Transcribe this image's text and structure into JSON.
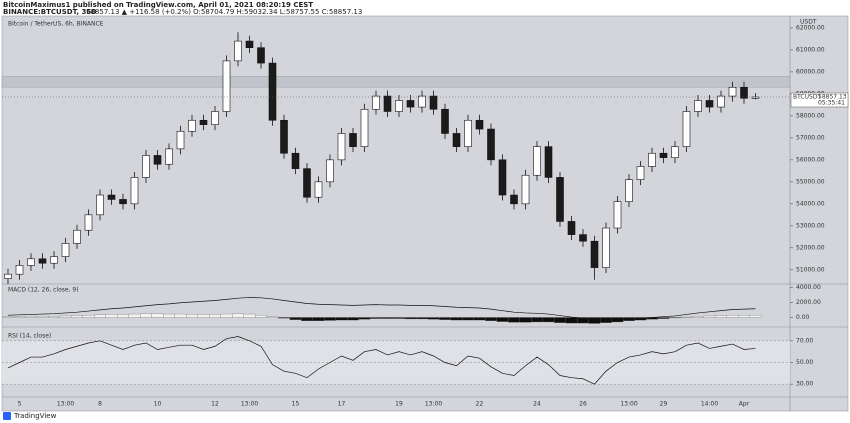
{
  "header": {
    "publisher": "BitcoinMaximus1 published on TradingView.com, April 01, 2021 08:20:19 CEST",
    "symbol": "BINANCE:BTCUSDT, 360",
    "quote": "58857.13 ▲ +116.58 (+0.2%) O:58704.79 H:59032.34 L:58757.55 C:58857.13"
  },
  "footer": {
    "brand": "TradingView"
  },
  "chart_data": [
    {
      "type": "candlestick",
      "title": "Bitcoin / TetherUS, 6h, BINANCE",
      "currency": "USDT",
      "categories": [
        null,
        "5",
        null,
        null,
        null,
        "13:00",
        null,
        null,
        "8",
        null,
        null,
        null,
        null,
        "10",
        null,
        null,
        null,
        null,
        "12",
        null,
        null,
        "13:00",
        null,
        null,
        null,
        "15",
        null,
        null,
        null,
        "17",
        null,
        null,
        null,
        null,
        "19",
        null,
        null,
        "13:00",
        null,
        null,
        null,
        "22",
        null,
        null,
        null,
        null,
        "24",
        null,
        null,
        null,
        "26",
        null,
        null,
        null,
        "13:00",
        null,
        null,
        "29",
        null,
        null,
        null,
        "14:00",
        null,
        null,
        "Apr",
        null
      ],
      "open": [
        50600,
        50800,
        51200,
        51500,
        51300,
        51600,
        52200,
        52800,
        53500,
        54400,
        54200,
        54000,
        55200,
        56200,
        55800,
        56500,
        57300,
        57800,
        57600,
        58200,
        60500,
        61400,
        61100,
        60400,
        57800,
        56300,
        55600,
        54300,
        55000,
        56000,
        57200,
        56600,
        58300,
        58900,
        58200,
        58700,
        58400,
        58900,
        58300,
        57200,
        56600,
        57800,
        57400,
        56000,
        54400,
        54000,
        55300,
        56600,
        55200,
        53200,
        52600,
        52300,
        51100,
        52900,
        54100,
        55100,
        55700,
        56300,
        56100,
        56600,
        58200,
        58700,
        58400,
        58900,
        59300,
        58800
      ],
      "high": [
        51050,
        51450,
        51750,
        51750,
        51850,
        52450,
        53050,
        53750,
        54650,
        54650,
        54450,
        55450,
        56450,
        56450,
        56750,
        57550,
        58050,
        58050,
        58450,
        60750,
        61800,
        61650,
        61350,
        60650,
        58050,
        56550,
        55850,
        55250,
        56250,
        57450,
        57450,
        58550,
        59150,
        59150,
        58950,
        58950,
        59150,
        59150,
        58550,
        57450,
        58050,
        58050,
        57650,
        56250,
        54650,
        55550,
        56850,
        56850,
        55450,
        53450,
        52850,
        52550,
        53150,
        54350,
        55350,
        55950,
        56550,
        56550,
        56850,
        58450,
        58950,
        58950,
        59150,
        59550,
        59550,
        59032.34
      ],
      "low": [
        50350,
        50550,
        50950,
        51050,
        51050,
        51350,
        51950,
        52550,
        53250,
        53950,
        53750,
        53750,
        54950,
        55550,
        55550,
        56250,
        57050,
        57350,
        57350,
        57950,
        60250,
        60850,
        60150,
        57550,
        56050,
        55350,
        54050,
        54050,
        54750,
        55750,
        56350,
        56350,
        58050,
        57950,
        57950,
        58150,
        58150,
        58050,
        56950,
        56350,
        56350,
        57150,
        55750,
        54150,
        53750,
        53750,
        55050,
        54950,
        52950,
        52350,
        52050,
        50550,
        50850,
        52650,
        53850,
        54850,
        55450,
        55850,
        55850,
        56350,
        57950,
        58150,
        58150,
        58650,
        58550,
        58757.55
      ],
      "close": [
        50800,
        51200,
        51500,
        51300,
        51600,
        52200,
        52800,
        53500,
        54400,
        54200,
        54000,
        55200,
        56200,
        55800,
        56500,
        57300,
        57800,
        57600,
        58200,
        60500,
        61400,
        61100,
        60400,
        57800,
        56300,
        55600,
        54300,
        55000,
        56000,
        57200,
        56600,
        58300,
        58900,
        58200,
        58700,
        58400,
        58900,
        58300,
        57200,
        56600,
        57800,
        57400,
        56000,
        54400,
        54000,
        55300,
        56600,
        55200,
        53200,
        52600,
        52300,
        51100,
        52900,
        54100,
        55100,
        55700,
        56300,
        56100,
        56600,
        58200,
        58700,
        58400,
        58900,
        59300,
        58800,
        58857.13
      ],
      "colors": {
        "up": "#ffffff",
        "down": "#1b1b1b",
        "zone": "#b9bcc4"
      },
      "resistance_zone": [
        59300,
        59800
      ],
      "last_symbol": "BTCUSDT",
      "countdown": "05:35:41",
      "ylim": [
        50400,
        62450
      ],
      "yticks": [
        {
          "value": 51000,
          "label": "51000.00"
        },
        {
          "value": 52000,
          "label": "52000.00"
        },
        {
          "value": 53000,
          "label": "53000.00"
        },
        {
          "value": 54000,
          "label": "54000.00"
        },
        {
          "value": 55000,
          "label": "55000.00"
        },
        {
          "value": 56000,
          "label": "56000.00"
        },
        {
          "value": 57000,
          "label": "57000.00"
        },
        {
          "value": 58000,
          "label": "58000.00"
        },
        {
          "value": 59000,
          "label": "59000.00"
        },
        {
          "value": 60000,
          "label": "60000.00"
        },
        {
          "value": 61000,
          "label": "61000.00"
        },
        {
          "value": 62000,
          "label": "62000.00"
        }
      ]
    },
    {
      "type": "macd",
      "title": "MACD (12, 26, close, 9)",
      "line": [
        300,
        350,
        400,
        450,
        500,
        600,
        700,
        850,
        1000,
        1150,
        1250,
        1400,
        1550,
        1700,
        1800,
        1950,
        2050,
        2150,
        2250,
        2400,
        2550,
        2650,
        2600,
        2450,
        2250,
        2050,
        1850,
        1750,
        1700,
        1650,
        1600,
        1650,
        1700,
        1650,
        1650,
        1600,
        1600,
        1550,
        1450,
        1350,
        1300,
        1250,
        1100,
        900,
        700,
        600,
        550,
        450,
        250,
        50,
        -100,
        -300,
        -350,
        -300,
        -200,
        -100,
        0,
        100,
        200,
        400,
        600,
        750,
        900,
        1050,
        1100,
        1150
      ],
      "histogram": [
        100,
        100,
        150,
        150,
        150,
        200,
        250,
        300,
        350,
        400,
        400,
        450,
        500,
        500,
        450,
        450,
        400,
        400,
        400,
        450,
        500,
        450,
        300,
        100,
        -100,
        -300,
        -450,
        -450,
        -400,
        -350,
        -350,
        -250,
        -150,
        -150,
        -150,
        -200,
        -200,
        -250,
        -300,
        -350,
        -350,
        -350,
        -450,
        -550,
        -650,
        -650,
        -600,
        -600,
        -700,
        -750,
        -750,
        -800,
        -700,
        -600,
        -450,
        -350,
        -250,
        -150,
        -50,
        50,
        150,
        200,
        250,
        300,
        300,
        300
      ],
      "colors": {
        "line": "#111111",
        "positive": "#f2f2f2",
        "negative": "#0e0e0e"
      },
      "ylim": [
        -1000,
        4300
      ],
      "yticks": [
        {
          "value": 0,
          "label": "0.00"
        },
        {
          "value": 2000,
          "label": "2000.00"
        },
        {
          "value": 4000,
          "label": "4000.00"
        }
      ]
    },
    {
      "type": "line",
      "title": "RSI (14, close)",
      "values": [
        45,
        50,
        55,
        55,
        58,
        62,
        65,
        68,
        70,
        66,
        62,
        66,
        68,
        62,
        64,
        66,
        66,
        62,
        65,
        72,
        74,
        70,
        65,
        48,
        42,
        40,
        36,
        44,
        50,
        56,
        52,
        60,
        62,
        57,
        60,
        57,
        60,
        56,
        50,
        47,
        56,
        54,
        46,
        40,
        38,
        47,
        55,
        48,
        38,
        36,
        35,
        30,
        42,
        50,
        55,
        57,
        60,
        58,
        60,
        66,
        68,
        63,
        65,
        67,
        62,
        63
      ],
      "color": "#111111",
      "ylim": [
        20,
        80
      ],
      "yticks": [
        {
          "value": 30,
          "label": "30.00"
        },
        {
          "value": 50,
          "label": "50.00"
        },
        {
          "value": 70,
          "label": "70.00"
        }
      ]
    }
  ]
}
